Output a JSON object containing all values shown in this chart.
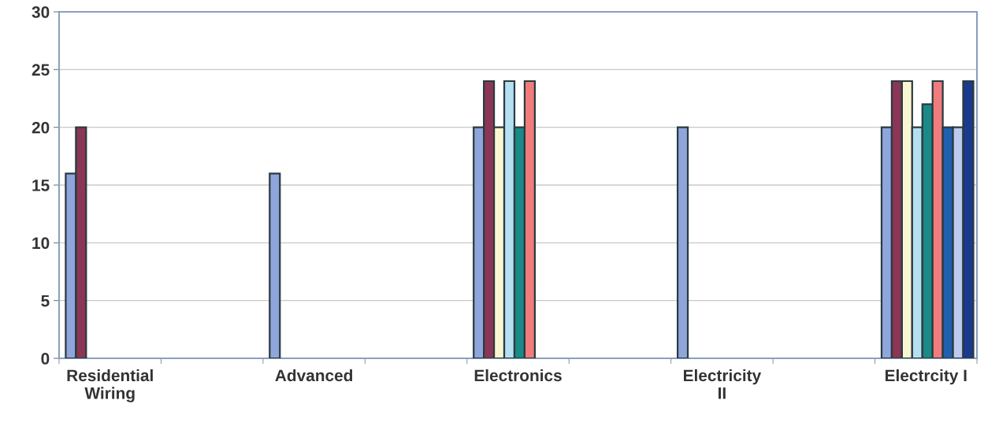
{
  "chart_data": {
    "type": "bar",
    "categories": [
      "Residential\nWiring",
      null,
      "Advanced",
      null,
      "Electronics",
      null,
      "Electricity\nII",
      null,
      "Electrcity I"
    ],
    "series": [
      {
        "color": "#8fa6dc",
        "values": [
          16,
          null,
          16,
          null,
          20,
          null,
          20,
          null,
          20
        ]
      },
      {
        "color": "#8b3656",
        "values": [
          20,
          null,
          null,
          null,
          24,
          null,
          null,
          null,
          24
        ]
      },
      {
        "color": "#fbf6d2",
        "values": [
          null,
          null,
          null,
          null,
          20,
          null,
          null,
          null,
          24
        ]
      },
      {
        "color": "#b4e0f2",
        "values": [
          null,
          null,
          null,
          null,
          24,
          null,
          null,
          null,
          20
        ]
      },
      {
        "color": "#1a8a88",
        "values": [
          null,
          null,
          null,
          null,
          20,
          null,
          null,
          null,
          22
        ]
      },
      {
        "color": "#f07c7c",
        "values": [
          null,
          null,
          null,
          null,
          24,
          null,
          null,
          null,
          24
        ]
      },
      {
        "color": "#2060b0",
        "values": [
          null,
          null,
          null,
          null,
          null,
          null,
          null,
          null,
          20
        ]
      },
      {
        "color": "#bccaf0",
        "values": [
          null,
          null,
          null,
          null,
          null,
          null,
          null,
          null,
          20
        ]
      },
      {
        "color": "#1c3a8c",
        "values": [
          null,
          null,
          null,
          null,
          null,
          null,
          null,
          null,
          24
        ]
      }
    ],
    "ylim": [
      0,
      30
    ],
    "yticks": [
      0,
      5,
      10,
      15,
      20,
      25,
      30
    ],
    "grid": "y",
    "legend": false
  }
}
